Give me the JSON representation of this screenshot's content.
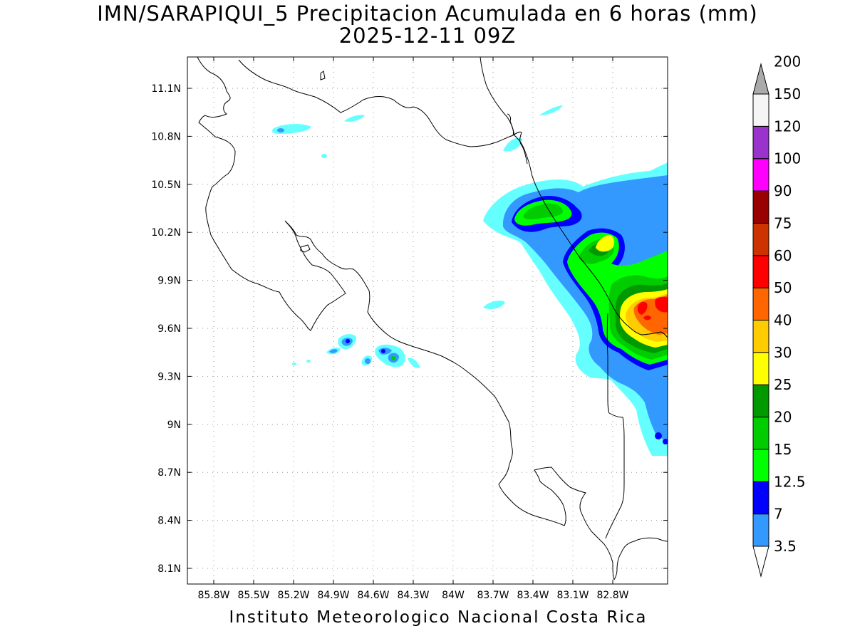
{
  "title": {
    "line1": "IMN/SARAPIQUI_5 Precipitacion Acumulada en 6 horas (mm)",
    "line2": "2025-12-11 09Z"
  },
  "footer": "Instituto Meteorologico Nacional Costa Rica",
  "map": {
    "lon_range": [
      -86.0,
      -83.0
    ],
    "lat_range": [
      8.0,
      11.3
    ],
    "lon_ticks": [
      {
        "value": -85.8,
        "label": "85.8W"
      },
      {
        "value": -85.5,
        "label": "85.5W"
      },
      {
        "value": -85.2,
        "label": "85.2W"
      },
      {
        "value": -84.9,
        "label": "84.9W"
      },
      {
        "value": -84.6,
        "label": "84.6W"
      },
      {
        "value": -84.3,
        "label": "84.3W"
      },
      {
        "value": -84.0,
        "label": "84W"
      },
      {
        "value": -83.7,
        "label": "83.7W"
      },
      {
        "value": -83.4,
        "label": "83.4W"
      },
      {
        "value": -83.1,
        "label": "83.1W"
      },
      {
        "value": -82.8,
        "label": "82.8W"
      }
    ],
    "lat_ticks": [
      {
        "value": 11.1,
        "label": "11.1N"
      },
      {
        "value": 10.8,
        "label": "10.8N"
      },
      {
        "value": 10.5,
        "label": "10.5N"
      },
      {
        "value": 10.2,
        "label": "10.2N"
      },
      {
        "value": 9.9,
        "label": "9.9N"
      },
      {
        "value": 9.6,
        "label": "9.6N"
      },
      {
        "value": 9.3,
        "label": "9.3N"
      },
      {
        "value": 9.0,
        "label": "9N"
      },
      {
        "value": 8.7,
        "label": "8.7N"
      },
      {
        "value": 8.4,
        "label": "8.4N"
      },
      {
        "value": 8.1,
        "label": "8.1N"
      }
    ],
    "grid": "dotted",
    "coastline_color": "#000000"
  },
  "colorbar": {
    "levels": [
      {
        "label": "3.5",
        "color": "#66ffff"
      },
      {
        "label": "7",
        "color": "#3399ff"
      },
      {
        "label": "12.5",
        "color": "#0000ff"
      },
      {
        "label": "15",
        "color": "#00ff00"
      },
      {
        "label": "20",
        "color": "#00cc00"
      },
      {
        "label": "25",
        "color": "#009900"
      },
      {
        "label": "30",
        "color": "#ffff00"
      },
      {
        "label": "40",
        "color": "#ffcc00"
      },
      {
        "label": "50",
        "color": "#ff6600"
      },
      {
        "label": "60",
        "color": "#ff0000"
      },
      {
        "label": "75",
        "color": "#cc3300"
      },
      {
        "label": "90",
        "color": "#990000"
      },
      {
        "label": "100",
        "color": "#ff00ff"
      },
      {
        "label": "120",
        "color": "#9933cc"
      },
      {
        "label": "150",
        "color": "#f5f5f5"
      },
      {
        "label": "200",
        "color": "#aaaaaa"
      }
    ]
  }
}
